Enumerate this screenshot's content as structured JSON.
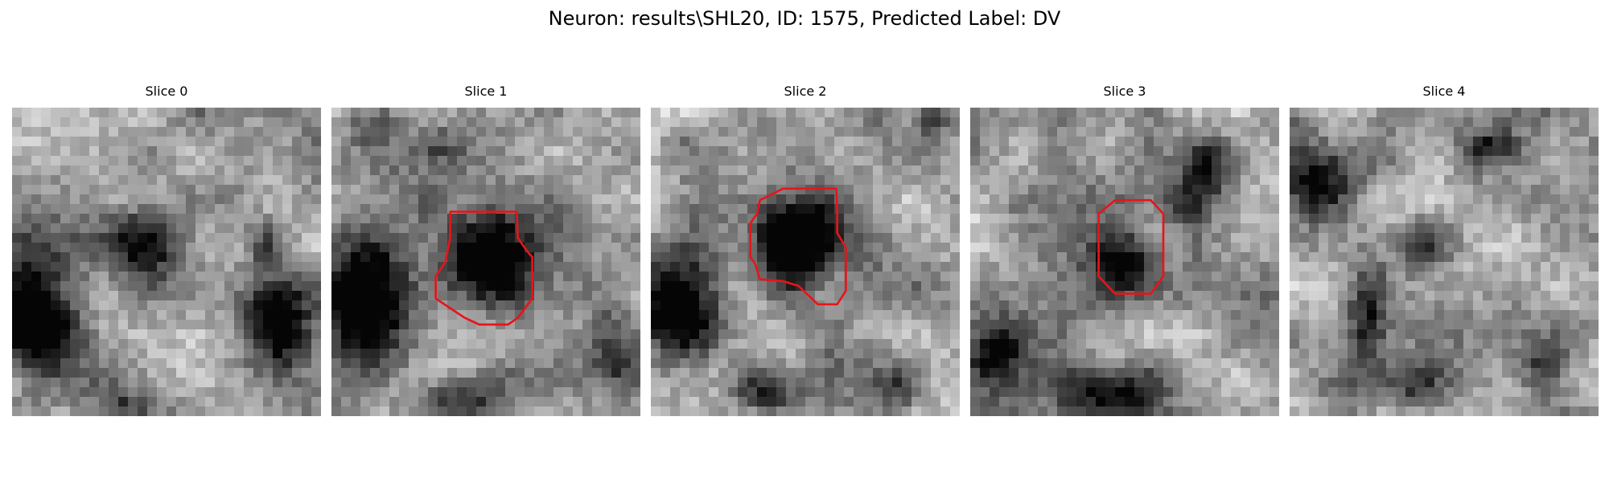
{
  "figure": {
    "title": "Neuron: results\\SHL20, ID: 1575, Predicted Label: DV"
  },
  "colors": {
    "contour": "#e8141a",
    "background": "#ffffff"
  },
  "panels": [
    {
      "title": "Slice 0"
    },
    {
      "title": "Slice 1"
    },
    {
      "title": "Slice 2"
    },
    {
      "title": "Slice 3"
    },
    {
      "title": "Slice 4"
    }
  ]
}
